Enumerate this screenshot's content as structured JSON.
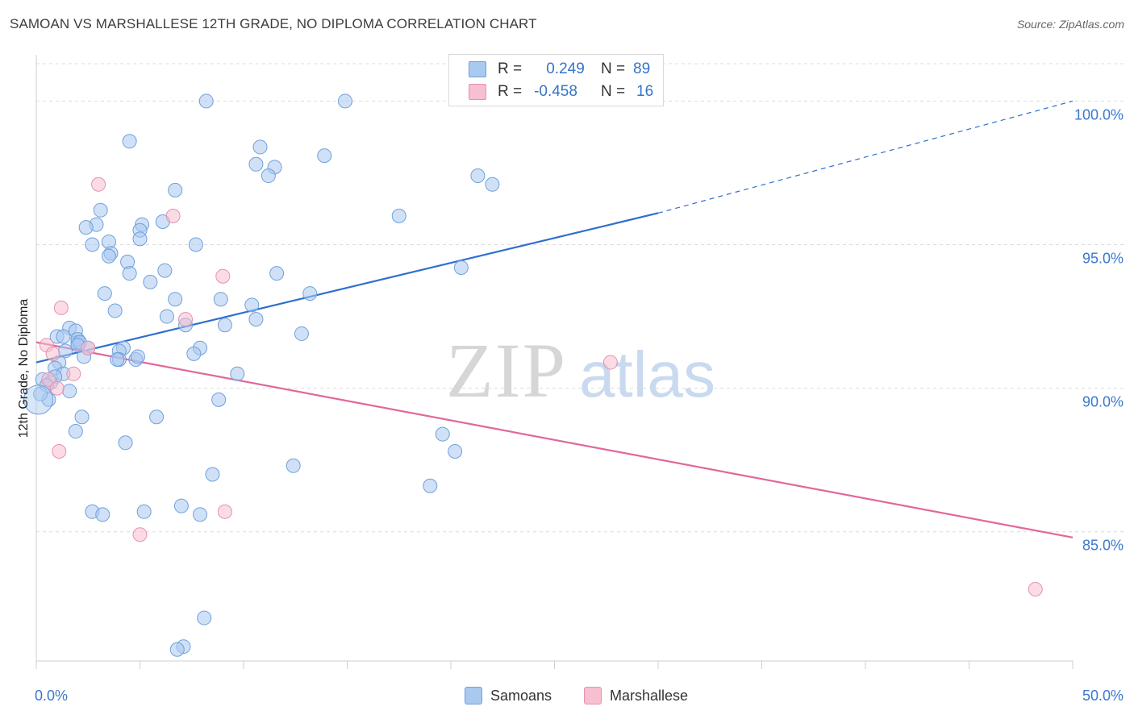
{
  "title": "SAMOAN VS MARSHALLESE 12TH GRADE, NO DIPLOMA CORRELATION CHART",
  "source": "Source: ZipAtlas.com",
  "watermark": {
    "zip": "ZIP",
    "atlas": "atlas"
  },
  "legend": {
    "rows": [
      {
        "r_label": "R =",
        "r_value": "0.249",
        "n_label": "N =",
        "n_value": "89",
        "color": "#a9c9f0",
        "border": "#6fa0db"
      },
      {
        "r_label": "R =",
        "r_value": "-0.458",
        "n_label": "N =",
        "n_value": "16",
        "color": "#f7bfd0",
        "border": "#e691ae"
      }
    ]
  },
  "bottom_legend": [
    {
      "label": "Samoans",
      "color": "#a9c9f0",
      "border": "#6fa0db"
    },
    {
      "label": "Marshallese",
      "color": "#f7bfd0",
      "border": "#e691ae"
    }
  ],
  "chart_data": {
    "type": "scatter",
    "title": "SAMOAN VS MARSHALLESE 12TH GRADE, NO DIPLOMA CORRELATION CHART",
    "xlabel": "",
    "ylabel": "12th Grade, No Diploma",
    "xlim": [
      0,
      50
    ],
    "ylim": [
      80.5,
      101.5
    ],
    "x_tick_labels": [
      "0.0%",
      "50.0%"
    ],
    "y_ticks": [
      85,
      90,
      95,
      100
    ],
    "y_tick_labels": [
      "85.0%",
      "90.0%",
      "95.0%",
      "100.0%"
    ],
    "grid": true,
    "legend_position": "top-center",
    "series": [
      {
        "name": "Samoans",
        "color": "#6fa0db",
        "fill": "#a9c9f0",
        "trend": {
          "x0": 0,
          "y0": 90.9,
          "x1": 30,
          "y1": 96.1,
          "dashed_to_x": 50,
          "dashed_to_y": 100.0,
          "color": "#2f6fce"
        },
        "points": [
          [
            8.2,
            100.0
          ],
          [
            14.9,
            100.0
          ],
          [
            4.5,
            98.6
          ],
          [
            10.8,
            98.4
          ],
          [
            13.9,
            98.1
          ],
          [
            10.6,
            97.8
          ],
          [
            11.5,
            97.7
          ],
          [
            11.2,
            97.4
          ],
          [
            21.3,
            97.4
          ],
          [
            22.0,
            97.1
          ],
          [
            6.7,
            96.9
          ],
          [
            3.1,
            96.2
          ],
          [
            17.5,
            96.0
          ],
          [
            6.1,
            95.8
          ],
          [
            5.1,
            95.7
          ],
          [
            2.9,
            95.7
          ],
          [
            2.4,
            95.6
          ],
          [
            5.0,
            95.5
          ],
          [
            5.0,
            95.2
          ],
          [
            3.5,
            95.1
          ],
          [
            2.7,
            95.0
          ],
          [
            7.7,
            95.0
          ],
          [
            3.6,
            94.7
          ],
          [
            3.5,
            94.6
          ],
          [
            4.4,
            94.4
          ],
          [
            20.5,
            94.2
          ],
          [
            6.2,
            94.1
          ],
          [
            11.6,
            94.0
          ],
          [
            4.5,
            94.0
          ],
          [
            5.5,
            93.7
          ],
          [
            3.3,
            93.3
          ],
          [
            13.2,
            93.3
          ],
          [
            6.7,
            93.1
          ],
          [
            8.9,
            93.1
          ],
          [
            10.4,
            92.9
          ],
          [
            3.8,
            92.7
          ],
          [
            6.3,
            92.5
          ],
          [
            10.6,
            92.4
          ],
          [
            7.2,
            92.2
          ],
          [
            9.1,
            92.2
          ],
          [
            1.6,
            92.1
          ],
          [
            1.9,
            92.0
          ],
          [
            1.0,
            91.8
          ],
          [
            12.8,
            91.9
          ],
          [
            1.3,
            91.8
          ],
          [
            2.0,
            91.6
          ],
          [
            2.0,
            91.7
          ],
          [
            2.1,
            91.6
          ],
          [
            2.5,
            91.4
          ],
          [
            4.2,
            91.4
          ],
          [
            7.9,
            91.4
          ],
          [
            1.4,
            91.3
          ],
          [
            4.0,
            91.3
          ],
          [
            7.6,
            91.2
          ],
          [
            2.3,
            91.1
          ],
          [
            4.0,
            91.0
          ],
          [
            3.9,
            91.0
          ],
          [
            4.8,
            91.0
          ],
          [
            1.1,
            90.9
          ],
          [
            9.7,
            90.5
          ],
          [
            0.9,
            90.7
          ],
          [
            1.3,
            90.5
          ],
          [
            0.9,
            90.4
          ],
          [
            0.3,
            90.3
          ],
          [
            0.7,
            90.2
          ],
          [
            0.5,
            90.1
          ],
          [
            1.6,
            89.9
          ],
          [
            0.6,
            89.6
          ],
          [
            0.2,
            89.8
          ],
          [
            8.8,
            89.6
          ],
          [
            2.2,
            89.0
          ],
          [
            5.8,
            89.0
          ],
          [
            1.9,
            88.5
          ],
          [
            19.6,
            88.4
          ],
          [
            4.3,
            88.1
          ],
          [
            20.2,
            87.8
          ],
          [
            12.4,
            87.3
          ],
          [
            8.5,
            87.0
          ],
          [
            19.0,
            86.6
          ],
          [
            2.7,
            85.7
          ],
          [
            3.2,
            85.6
          ],
          [
            5.2,
            85.7
          ],
          [
            7.0,
            85.9
          ],
          [
            7.9,
            85.6
          ],
          [
            8.1,
            82.0
          ],
          [
            7.1,
            81.0
          ],
          [
            6.8,
            80.9
          ],
          [
            2.0,
            91.5
          ],
          [
            4.9,
            91.1
          ]
        ]
      },
      {
        "name": "Marshallese",
        "color": "#e691ae",
        "fill": "#f7bfd0",
        "trend": {
          "x0": 0,
          "y0": 91.6,
          "x1": 50,
          "y1": 84.8,
          "color": "#e0689a"
        },
        "points": [
          [
            3.0,
            97.1
          ],
          [
            6.6,
            96.0
          ],
          [
            9.0,
            93.9
          ],
          [
            1.2,
            92.8
          ],
          [
            7.2,
            92.4
          ],
          [
            0.5,
            91.5
          ],
          [
            0.8,
            91.2
          ],
          [
            2.5,
            91.4
          ],
          [
            1.8,
            90.5
          ],
          [
            0.6,
            90.3
          ],
          [
            1.0,
            90.0
          ],
          [
            27.7,
            90.9
          ],
          [
            1.1,
            87.8
          ],
          [
            9.1,
            85.7
          ],
          [
            5.0,
            84.9
          ],
          [
            48.2,
            83.0
          ]
        ]
      }
    ]
  }
}
